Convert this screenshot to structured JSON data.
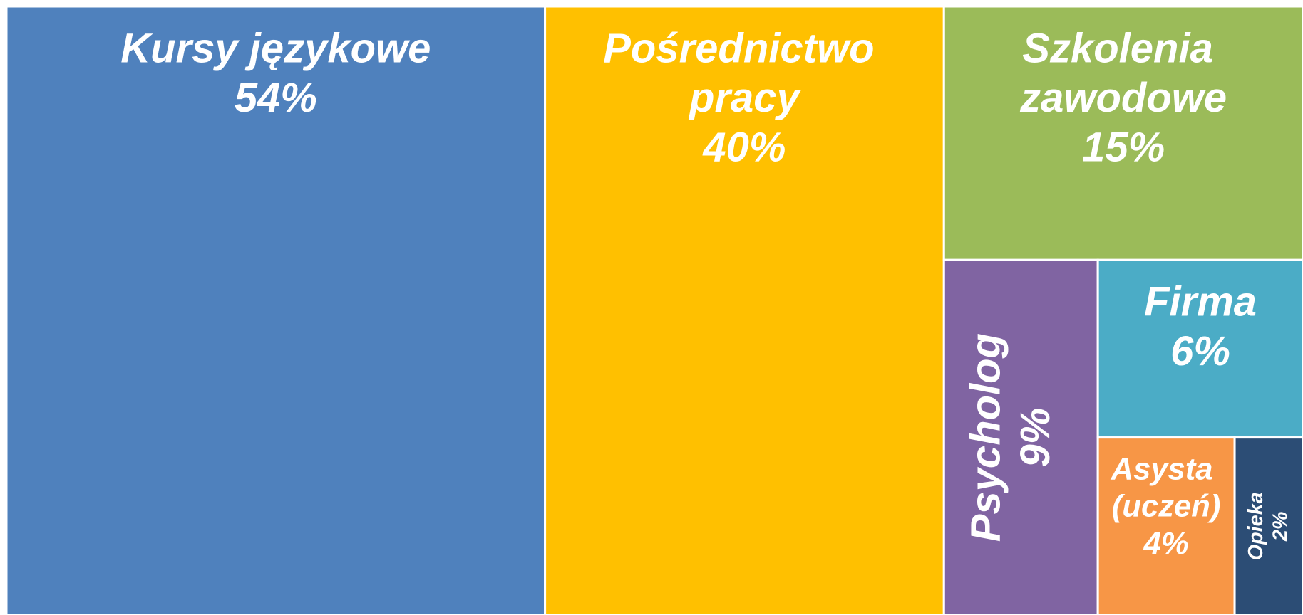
{
  "chart_data": {
    "type": "treemap",
    "categories": [
      "Kursy językowe",
      "Pośrednictwo pracy",
      "Szkolenia zawodowe",
      "Psycholog",
      "Firma",
      "Asysta (uczeń)",
      "Opieka"
    ],
    "values": [
      54,
      40,
      15,
      9,
      6,
      4,
      2
    ],
    "value_labels": [
      "54%",
      "40%",
      "15%",
      "9%",
      "6%",
      "4%",
      "2%"
    ],
    "colors": [
      "#4f81bd",
      "#ffc000",
      "#9bbb59",
      "#8064a2",
      "#4bacc6",
      "#f79646",
      "#2c4d75"
    ]
  }
}
